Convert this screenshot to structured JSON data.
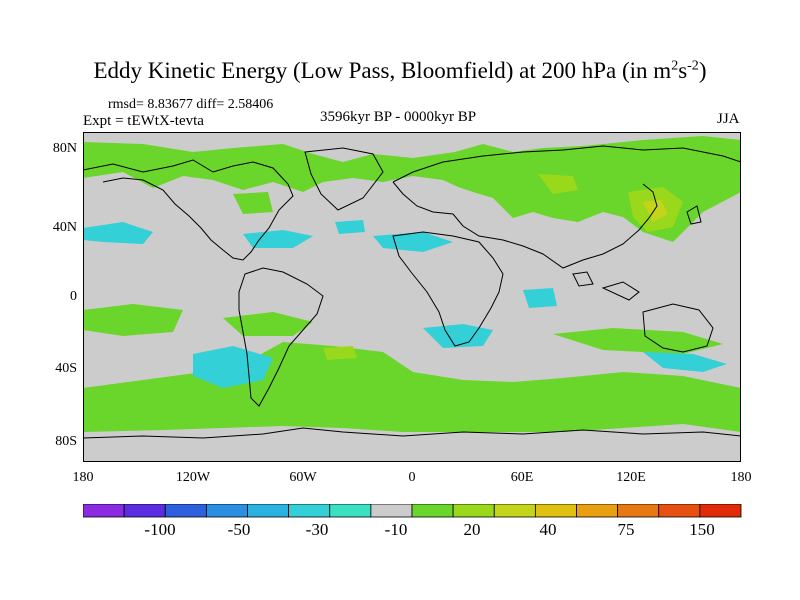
{
  "title": {
    "main": "Eddy Kinetic Energy (Low Pass, Bloomfield) at 200 hPa (in m",
    "sup1": "2",
    "mid": "s",
    "sup2": "-2",
    "end": ")"
  },
  "stats": "rmsd= 8.83677 diff= 2.58406",
  "experiment": "Expt = tEWtX-tevta",
  "period": "3596kyr BP - 0000kyr BP",
  "season": "JJA",
  "lat_labels": [
    "80N",
    "40N",
    "0",
    "40S",
    "80S"
  ],
  "lon_labels": [
    "180",
    "120W",
    "60W",
    "0",
    "60E",
    "120E",
    "180"
  ],
  "colorbar": {
    "colors": [
      "#8a2be2",
      "#5a2ee0",
      "#2e5fdc",
      "#2c8ee0",
      "#2ab3e0",
      "#33d0d8",
      "#3ae0c0",
      "#cccccc",
      "#6ad52a",
      "#9ad81c",
      "#c3d41a",
      "#e0c010",
      "#e8a010",
      "#e87812",
      "#e65010",
      "#e02a08"
    ],
    "labels": [
      "-100",
      "-50",
      "-30",
      "-10",
      "20",
      "40",
      "75",
      "150"
    ]
  },
  "colors": {
    "land_fill": "#cccccc",
    "green": "#6ad52a",
    "cyan": "#33d0d8",
    "yellowgreen": "#9ad81c"
  }
}
